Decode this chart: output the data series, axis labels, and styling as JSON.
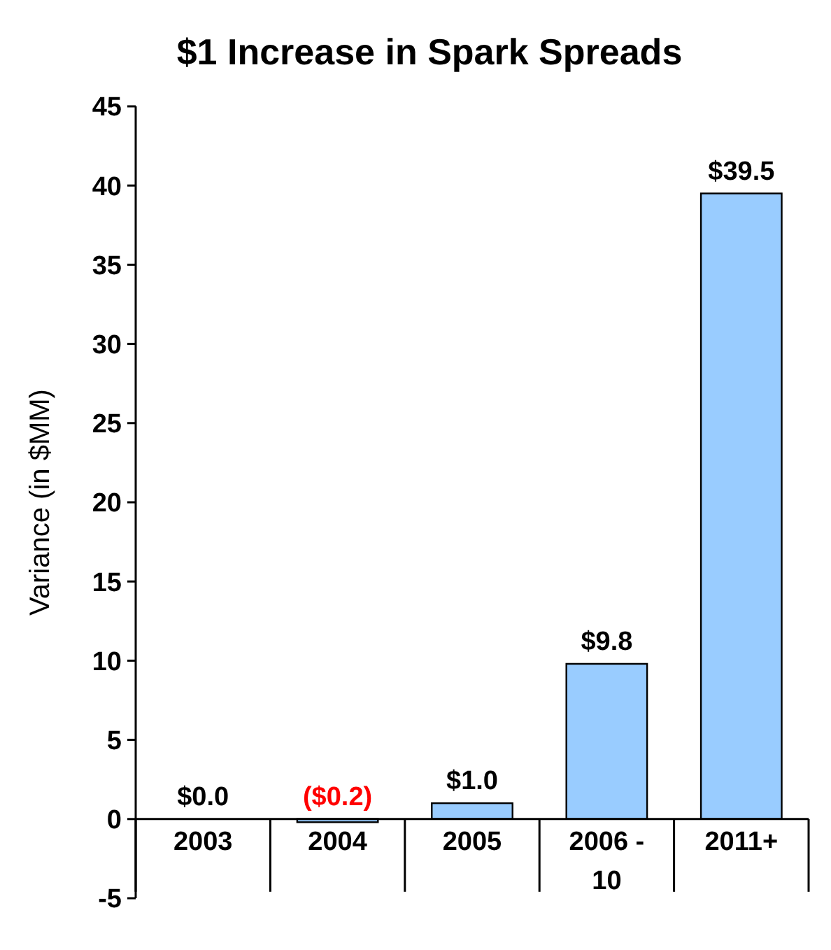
{
  "chart_data": {
    "type": "bar",
    "title": "$1 Increase in Spark Spreads",
    "ylabel": "Variance (in $MM)",
    "categories": [
      "2003",
      "2004",
      "2005",
      "2006 - 10",
      "2011+"
    ],
    "values": [
      0.0,
      -0.2,
      1.0,
      9.8,
      39.5
    ],
    "color": "#99ccff",
    "value_labels": [
      "$0.0",
      "($0.2)",
      "$1.0",
      "$9.8",
      "$39.5"
    ],
    "ylim": [
      -5,
      45
    ],
    "yticks": [
      -5,
      0,
      5,
      10,
      15,
      20,
      25,
      30,
      35,
      40,
      45
    ],
    "grid": false
  }
}
